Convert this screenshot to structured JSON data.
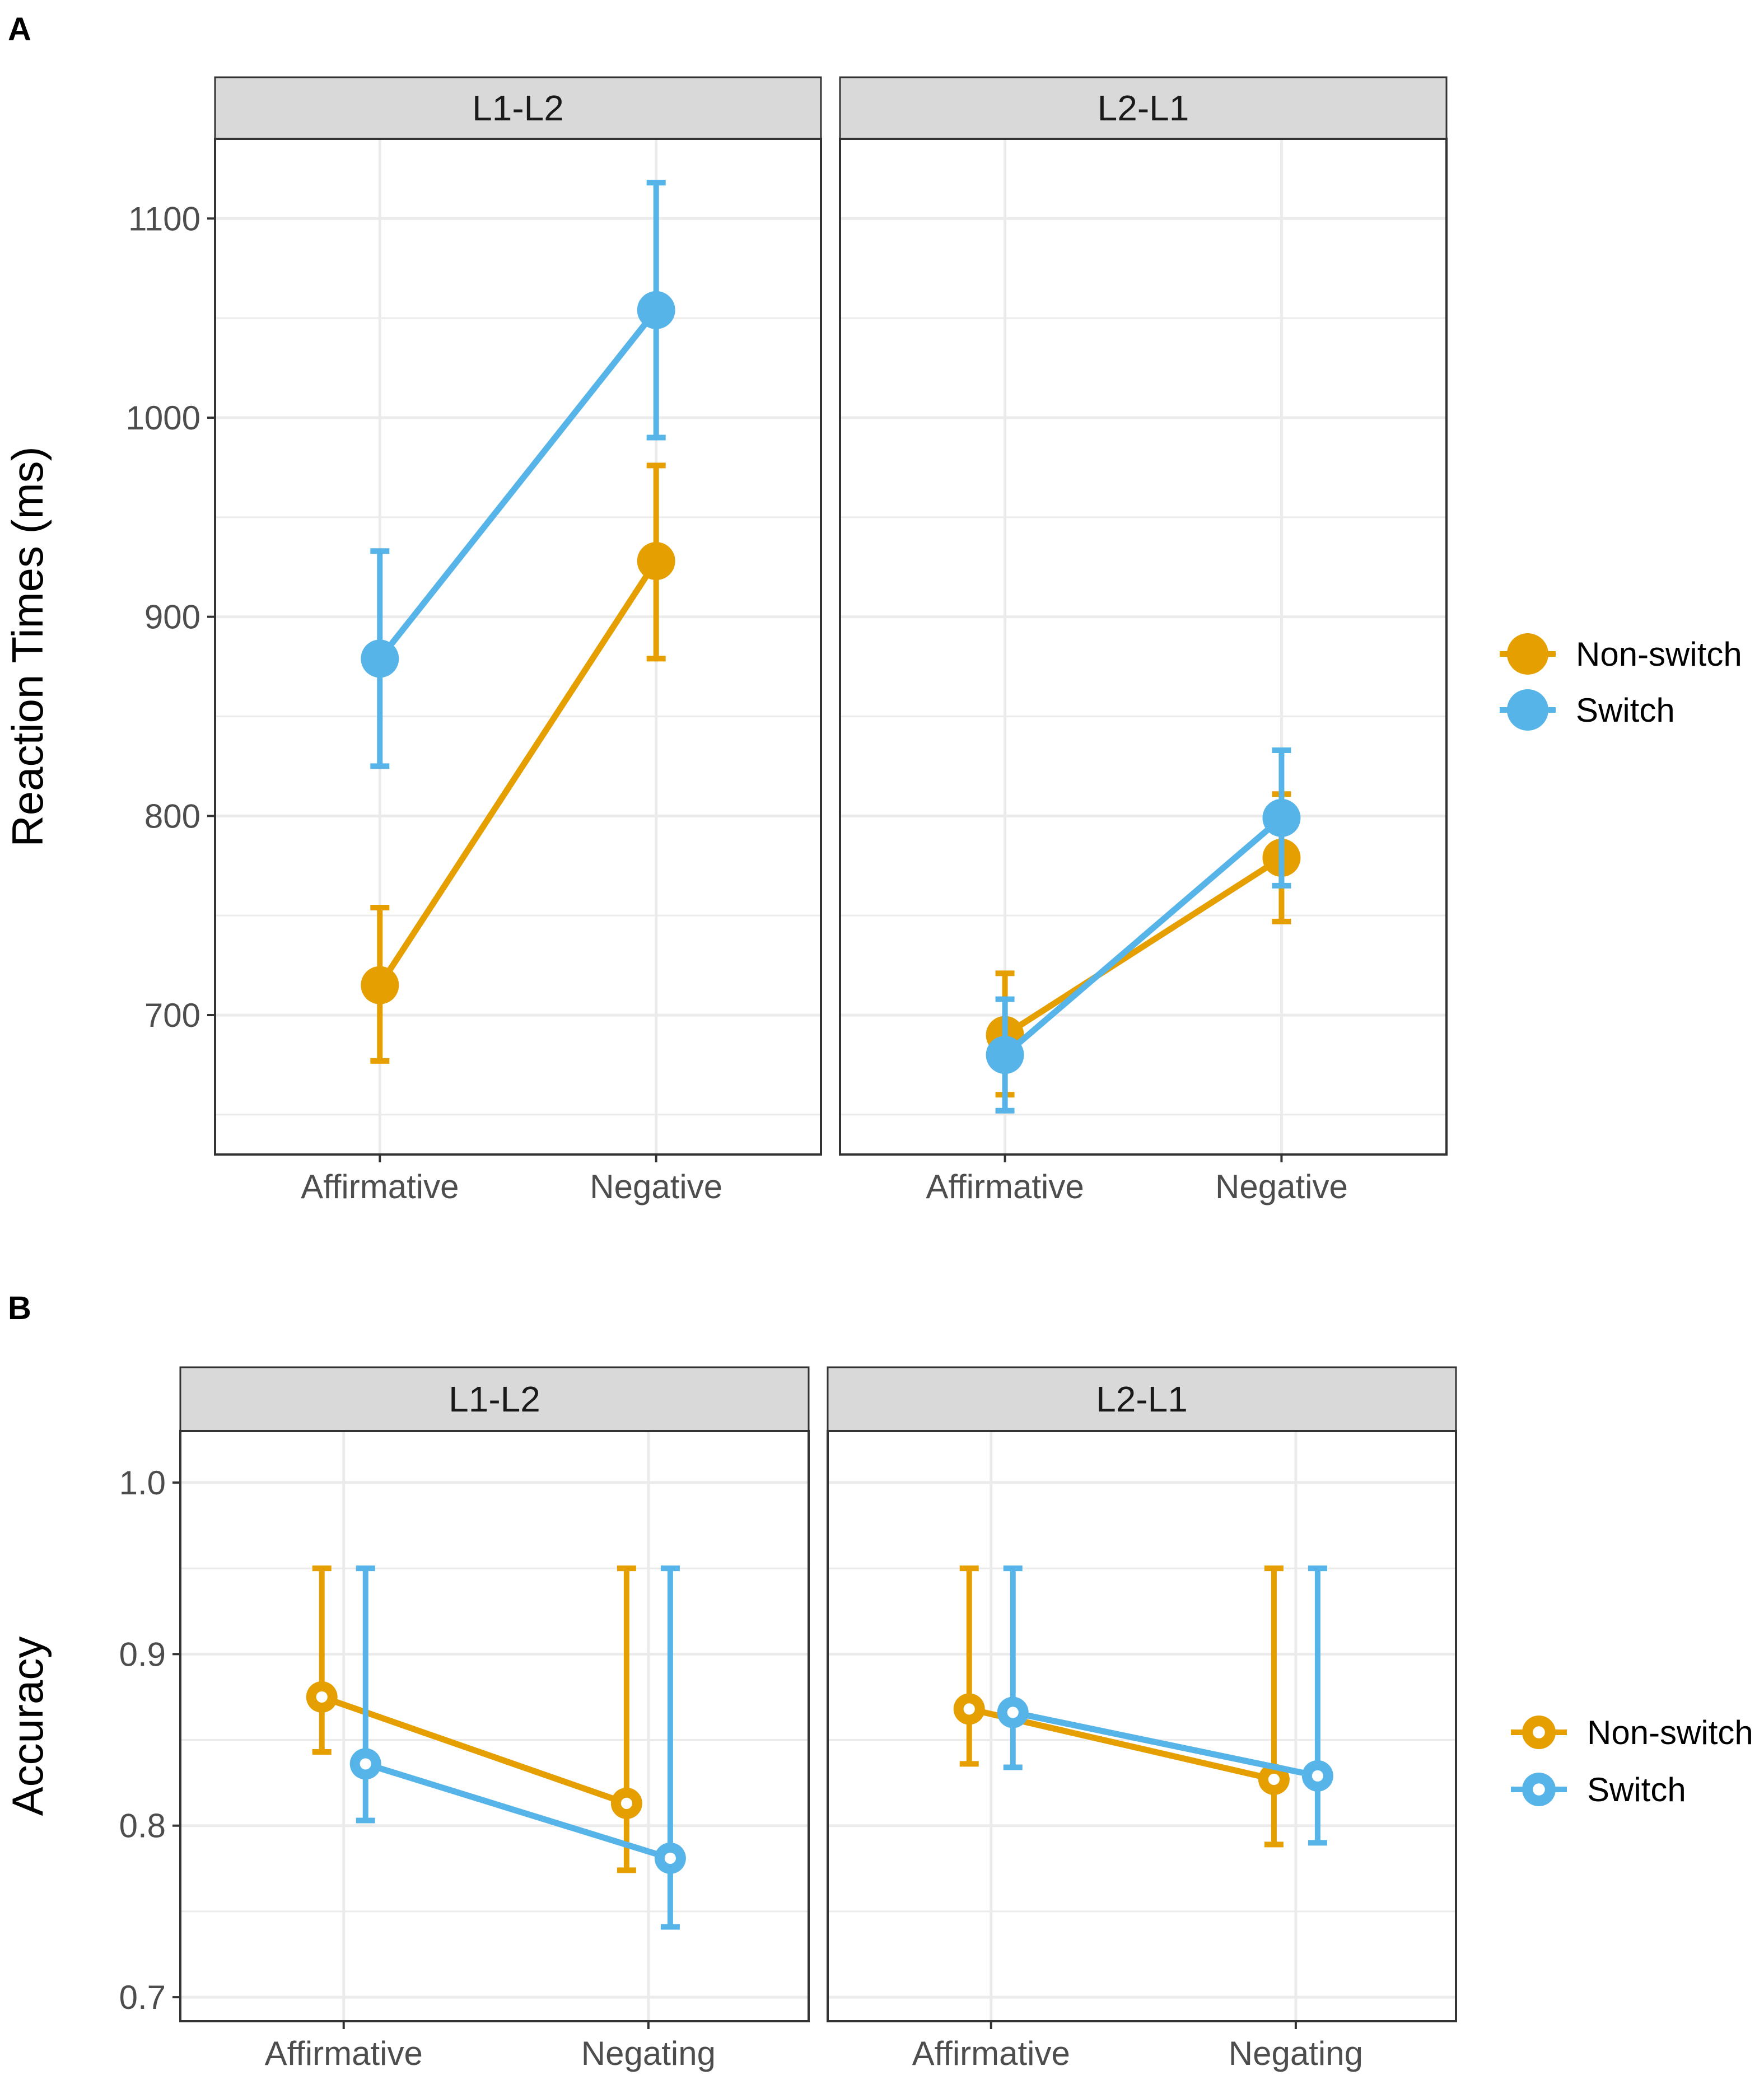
{
  "colors": {
    "Non-switch": "#E69F00",
    "Switch": "#56B4E9"
  },
  "chart_data": [
    {
      "panel_label": "A",
      "type": "line",
      "ylabel": "Reaction Times (ms)",
      "xlabel": "",
      "ylim": [
        630,
        1140
      ],
      "yticks": [
        700,
        800,
        900,
        1000,
        1100
      ],
      "ytick_labels": [
        "700",
        "800",
        "900",
        "1000",
        "1100"
      ],
      "categories": [
        "Affirmative",
        "Negative"
      ],
      "facets": [
        {
          "label": "L1-L2",
          "series": [
            {
              "name": "Non-switch",
              "values": [
                715,
                928
              ],
              "err_low": [
                677,
                879
              ],
              "err_high": [
                754,
                976
              ]
            },
            {
              "name": "Switch",
              "values": [
                879,
                1054
              ],
              "err_low": [
                825,
                990
              ],
              "err_high": [
                933,
                1118
              ]
            }
          ]
        },
        {
          "label": "L2-L1",
          "series": [
            {
              "name": "Non-switch",
              "values": [
                690,
                779
              ],
              "err_low": [
                660,
                747
              ],
              "err_high": [
                721,
                811
              ]
            },
            {
              "name": "Switch",
              "values": [
                680,
                799
              ],
              "err_low": [
                652,
                765
              ],
              "err_high": [
                708,
                833
              ]
            }
          ]
        }
      ],
      "legend": {
        "entries": [
          "Non-switch",
          "Switch"
        ],
        "marker": "filled",
        "position": "right"
      }
    },
    {
      "panel_label": "B",
      "type": "line",
      "ylabel": "Accuracy",
      "xlabel": "",
      "ylim": [
        0.686,
        1.03
      ],
      "yticks": [
        0.7,
        0.8,
        0.9,
        1.0
      ],
      "ytick_labels": [
        "0.7",
        "0.8",
        "0.9",
        "1.0"
      ],
      "categories": [
        "Affirmative",
        "Negating"
      ],
      "facets": [
        {
          "label": "L1-L2",
          "series": [
            {
              "name": "Non-switch",
              "values": [
                0.875,
                0.813
              ],
              "err_low": [
                0.843,
                0.774
              ],
              "err_high": [
                0.95,
                0.95
              ]
            },
            {
              "name": "Switch",
              "values": [
                0.836,
                0.781
              ],
              "err_low": [
                0.803,
                0.741
              ],
              "err_high": [
                0.95,
                0.95
              ]
            }
          ]
        },
        {
          "label": "L2-L1",
          "series": [
            {
              "name": "Non-switch",
              "values": [
                0.868,
                0.827
              ],
              "err_low": [
                0.836,
                0.789
              ],
              "err_high": [
                0.95,
                0.95
              ]
            },
            {
              "name": "Switch",
              "values": [
                0.866,
                0.829
              ],
              "err_low": [
                0.834,
                0.79
              ],
              "err_high": [
                0.95,
                0.95
              ]
            }
          ]
        }
      ],
      "legend": {
        "entries": [
          "Non-switch",
          "Switch"
        ],
        "marker": "hollow",
        "position": "right"
      }
    }
  ]
}
